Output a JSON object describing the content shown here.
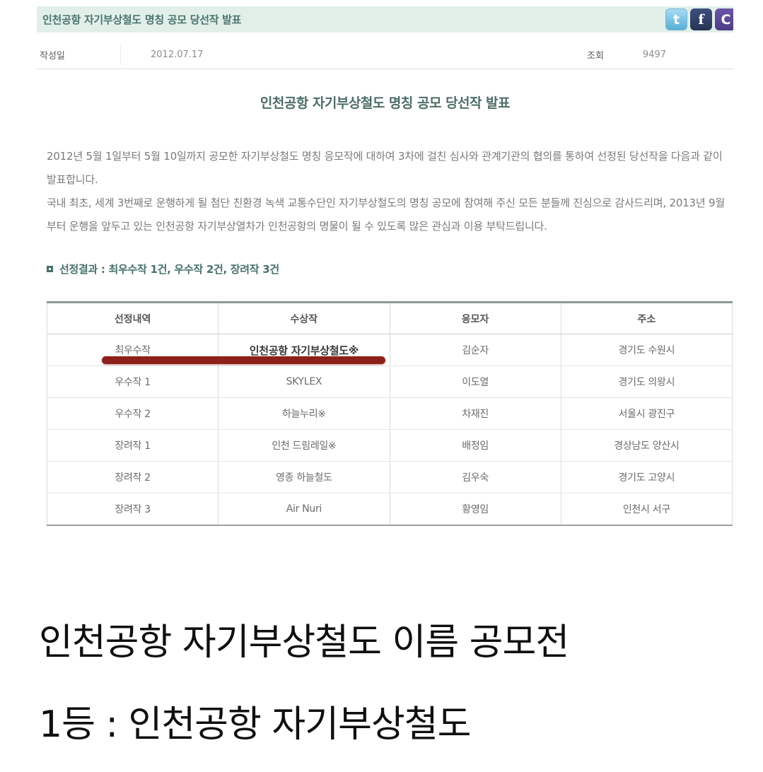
{
  "title_bar": {
    "title": "인천공항 자기부상철도 명칭 공모 당선작 발표"
  },
  "social": {
    "icons": [
      {
        "name": "twitter-icon",
        "glyph": "t"
      },
      {
        "name": "facebook-icon",
        "glyph": "f"
      },
      {
        "name": "cyworld-icon",
        "glyph": "C"
      }
    ]
  },
  "meta": {
    "date_label": "작성일",
    "date_value": "2012.07.17",
    "views_label": "조회",
    "views_value": "9497"
  },
  "heading": "인천공항 자기부상철도 명칭 공모 당선작 발표",
  "paragraphs": {
    "p1": "2012년 5월 1일부터 5월 10일까지 공모한 자기부상철도 명칭 응모작에 대하여 3차에 걸친 심사와 관계기관의 협의를 통하여 선정된 당선작을 다음과 같이 발표합니다.",
    "p2": "국내 최초, 세계 3번째로 운행하게 될 첨단 친환경 녹색 교통수단인 자기부상철도의 명칭 공모에 참여해 주신 모든 분들께 진심으로 감사드리며, 2013년 9월부터 운행을 앞두고 있는 인천공항 자기부상열차가 인천공항의 명물이 될 수 있도록 많은 관심과 이용 부탁드립니다."
  },
  "section_label": "선정결과 : 최우수작 1건, 우수작 2건, 장려작 3건",
  "table": {
    "headers": [
      "선정내역",
      "수상작",
      "응모자",
      "주소"
    ],
    "rows": [
      [
        "최우수작",
        "인천공항 자기부상철도※",
        "김순자",
        "경기도 수원시"
      ],
      [
        "우수작 1",
        "SKYLEX",
        "이도열",
        "경기도 의왕시"
      ],
      [
        "우수작 2",
        "하늘누리※",
        "차재진",
        "서울시 광진구"
      ],
      [
        "장려작 1",
        "인천 드림레일※",
        "배정임",
        "경상남도 양산시"
      ],
      [
        "장려작 2",
        "영종 하늘철도",
        "김우숙",
        "경기도 고양시"
      ],
      [
        "장려작 3",
        "Air Nuri",
        "황영임",
        "인천시 서구"
      ]
    ]
  },
  "captions": {
    "line1": "인천공항 자기부상철도 이름 공모전",
    "line2": "1등 : 인천공항 자기부상철도"
  },
  "colors": {
    "accent_teal": "#4a756e",
    "bar_bg": "#e2efe9",
    "red_line": "#8d201b",
    "twitter_blue": "#58aed8",
    "facebook_navy": "#273455",
    "cyworld_purple": "#4e3b85"
  }
}
